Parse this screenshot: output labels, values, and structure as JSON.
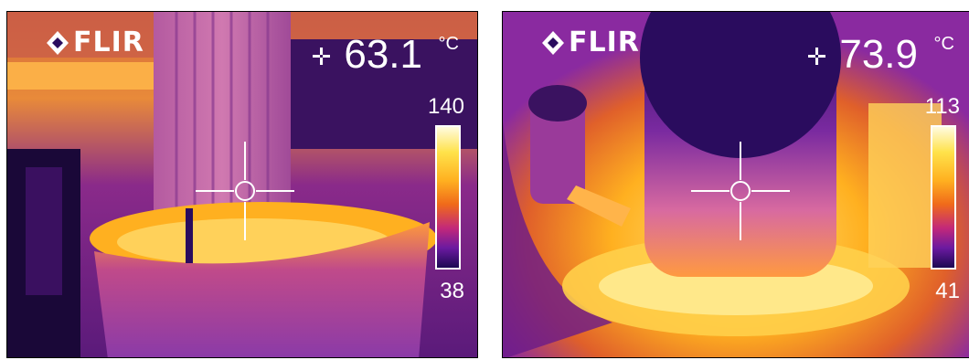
{
  "images": [
    {
      "brand": "FLIR",
      "spot_temperature": "63.1",
      "unit": "°C",
      "scale_max": "140",
      "scale_min": "38"
    },
    {
      "brand": "FLIR",
      "spot_temperature": "73.9",
      "unit": "°C",
      "scale_max": "113",
      "scale_min": "41"
    }
  ],
  "palette": {
    "hot": "#fff6c8",
    "warm": "#ffb020",
    "mid": "#e0502a",
    "cool": "#8a2aa0",
    "cold": "#2a0c5e"
  }
}
